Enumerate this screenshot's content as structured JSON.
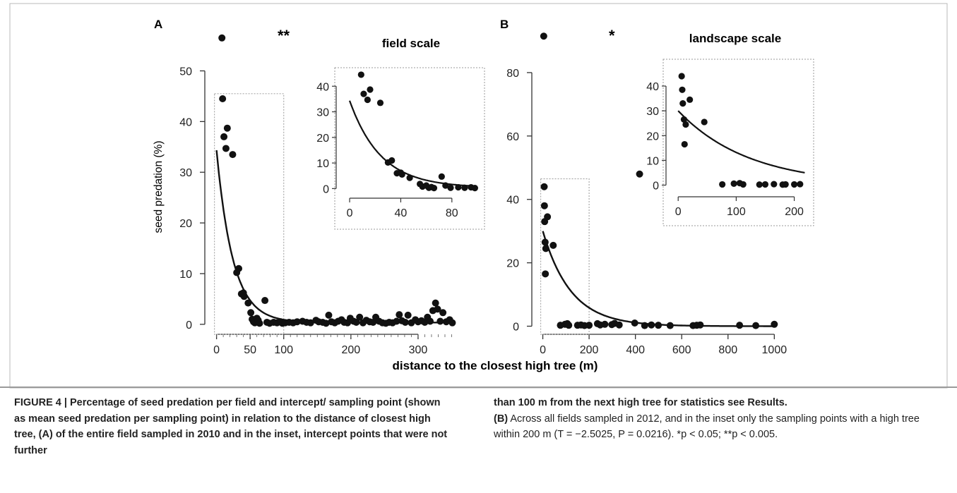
{
  "figure": {
    "xlabel": "distance to the closest high tree (m)",
    "ylabel": "seed predation (%)"
  },
  "caption": {
    "left": "FIGURE 4 | Percentage of seed predation per field and intercept/ sampling point (shown as mean seed predation per sampling point) in relation to the distance of closest high tree, (A) of the entire field sampled in 2010 and in the inset, intercept points that were not further",
    "right_bold": "than 100 m from the next high tree for statistics see Results.",
    "right_b_label": "(B)",
    "right_text": " Across all fields sampled in 2012, and in the inset only the sampling points with a high tree within 200 m (T = −2.5025, P = 0.0216). *p < 0.05; **p < 0.005."
  },
  "chart_data": [
    {
      "panel": "A",
      "type": "scatter",
      "significance": "**",
      "xlim": [
        -8,
        360
      ],
      "ylim": [
        -1,
        58
      ],
      "xticks": [
        0,
        50,
        100,
        200,
        300
      ],
      "yticks": [
        0,
        10,
        20,
        30,
        40,
        50
      ],
      "curve": {
        "a": 34,
        "b": 0.041,
        "c": 0.35
      },
      "points": [
        [
          8,
          56.5
        ],
        [
          9,
          44.5
        ],
        [
          11,
          37
        ],
        [
          14,
          34.7
        ],
        [
          16,
          38.7
        ],
        [
          24,
          33.5
        ],
        [
          30,
          10.2
        ],
        [
          33,
          11
        ],
        [
          37,
          6
        ],
        [
          40,
          6.2
        ],
        [
          41,
          5.5
        ],
        [
          47,
          4.2
        ],
        [
          51,
          2.3
        ],
        [
          53,
          1
        ],
        [
          55,
          0.5
        ],
        [
          57,
          0.3
        ],
        [
          60,
          1.2
        ],
        [
          62,
          0.8
        ],
        [
          64,
          0.2
        ],
        [
          72,
          4.7
        ],
        [
          75,
          0.4
        ],
        [
          79,
          0.2
        ],
        [
          85,
          0.4
        ],
        [
          90,
          0.3
        ],
        [
          95,
          0.5
        ],
        [
          98,
          0.2
        ],
        [
          102,
          0.3
        ],
        [
          108,
          0.4
        ],
        [
          114,
          0.3
        ],
        [
          120,
          0.5
        ],
        [
          128,
          0.6
        ],
        [
          134,
          0.4
        ],
        [
          140,
          0.3
        ],
        [
          148,
          0.8
        ],
        [
          152,
          0.5
        ],
        [
          158,
          0.4
        ],
        [
          163,
          0.2
        ],
        [
          167,
          1.8
        ],
        [
          171,
          0.5
        ],
        [
          176,
          0.3
        ],
        [
          181,
          0.6
        ],
        [
          186,
          0.9
        ],
        [
          190,
          0.4
        ],
        [
          195,
          0.3
        ],
        [
          199,
          1.2
        ],
        [
          204,
          0.6
        ],
        [
          208,
          0.4
        ],
        [
          213,
          1.4
        ],
        [
          218,
          0.3
        ],
        [
          223,
          0.8
        ],
        [
          228,
          0.5
        ],
        [
          233,
          0.4
        ],
        [
          237,
          1.4
        ],
        [
          242,
          0.6
        ],
        [
          247,
          0.3
        ],
        [
          252,
          0.2
        ],
        [
          257,
          0.4
        ],
        [
          262,
          0.3
        ],
        [
          268,
          0.6
        ],
        [
          272,
          1.9
        ],
        [
          276,
          0.7
        ],
        [
          281,
          0.4
        ],
        [
          285,
          1.8
        ],
        [
          290,
          0.3
        ],
        [
          296,
          0.9
        ],
        [
          300,
          0.5
        ],
        [
          305,
          0.7
        ],
        [
          310,
          0.4
        ],
        [
          314,
          1.4
        ],
        [
          318,
          0.6
        ],
        [
          322,
          2.7
        ],
        [
          326,
          4.2
        ],
        [
          329,
          3
        ],
        [
          333,
          0.6
        ],
        [
          337,
          2.3
        ],
        [
          342,
          0.5
        ],
        [
          347,
          0.9
        ],
        [
          351,
          0.3
        ]
      ],
      "inset": {
        "title": "field scale",
        "xlim": [
          -5,
          100
        ],
        "ylim": [
          -1,
          42
        ],
        "xticks": [
          0,
          40,
          80
        ],
        "yticks": [
          0,
          10,
          20,
          30,
          40
        ],
        "points": [
          [
            9,
            44.5
          ],
          [
            11,
            37
          ],
          [
            14,
            34.7
          ],
          [
            16,
            38.7
          ],
          [
            24,
            33.5
          ],
          [
            30,
            10.2
          ],
          [
            33,
            11
          ],
          [
            37,
            6
          ],
          [
            40,
            6.2
          ],
          [
            41,
            5.5
          ],
          [
            47,
            4.2
          ],
          [
            55,
            1.8
          ],
          [
            57,
            0.8
          ],
          [
            60,
            1.2
          ],
          [
            62,
            0.3
          ],
          [
            64,
            0.6
          ],
          [
            66,
            0.2
          ],
          [
            72,
            4.7
          ],
          [
            75,
            1.2
          ],
          [
            79,
            0.3
          ],
          [
            85,
            0.5
          ],
          [
            90,
            0.3
          ],
          [
            95,
            0.5
          ],
          [
            98,
            0.2
          ]
        ]
      },
      "selection_box": {
        "xmax": 100,
        "ymax": 45.5
      }
    },
    {
      "panel": "B",
      "type": "scatter",
      "significance": "*",
      "xlim": [
        -20,
        1060
      ],
      "ylim": [
        -1,
        94
      ],
      "xticks": [
        0,
        200,
        400,
        600,
        800,
        1000
      ],
      "yticks": [
        0,
        20,
        40,
        60,
        80
      ],
      "curve": {
        "a": 30,
        "b": 0.0082,
        "c": 0
      },
      "points": [
        [
          4,
          91.5
        ],
        [
          6,
          44
        ],
        [
          7,
          38
        ],
        [
          8,
          33
        ],
        [
          10,
          26.5
        ],
        [
          11,
          16.5
        ],
        [
          13,
          24.5
        ],
        [
          20,
          34.5
        ],
        [
          45,
          25.5
        ],
        [
          76,
          0.3
        ],
        [
          96,
          0.6
        ],
        [
          106,
          0.8
        ],
        [
          112,
          0.3
        ],
        [
          150,
          0.3
        ],
        [
          165,
          0.4
        ],
        [
          180,
          0.2
        ],
        [
          200,
          0.3
        ],
        [
          236,
          0.8
        ],
        [
          248,
          0.4
        ],
        [
          268,
          0.6
        ],
        [
          298,
          0.5
        ],
        [
          310,
          0.9
        ],
        [
          330,
          0.4
        ],
        [
          397,
          1
        ],
        [
          418,
          48
        ],
        [
          440,
          0.2
        ],
        [
          469,
          0.4
        ],
        [
          499,
          0.3
        ],
        [
          550,
          0.2
        ],
        [
          649,
          0.2
        ],
        [
          665,
          0.3
        ],
        [
          680,
          0.4
        ],
        [
          850,
          0.3
        ],
        [
          920,
          0.2
        ],
        [
          1000,
          0.6
        ]
      ],
      "inset": {
        "title": "landscape scale",
        "xlim": [
          -10,
          220
        ],
        "ylim": [
          -1,
          42
        ],
        "xticks": [
          0,
          100,
          200
        ],
        "yticks": [
          0,
          10,
          20,
          30,
          40
        ],
        "points": [
          [
            6,
            44
          ],
          [
            7,
            38.5
          ],
          [
            8,
            33
          ],
          [
            10,
            26.5
          ],
          [
            11,
            16.5
          ],
          [
            13,
            24.5
          ],
          [
            20,
            34.5
          ],
          [
            45,
            25.5
          ],
          [
            76,
            0.3
          ],
          [
            96,
            0.6
          ],
          [
            106,
            0.8
          ],
          [
            112,
            0.3
          ],
          [
            150,
            0.3
          ],
          [
            165,
            0.4
          ],
          [
            180,
            0.2
          ],
          [
            200,
            0.3
          ],
          [
            185,
            0.3
          ],
          [
            140,
            0.2
          ],
          [
            210,
            0.4
          ]
        ]
      },
      "selection_box": {
        "xmax": 200,
        "ymax": 46.5
      }
    }
  ]
}
